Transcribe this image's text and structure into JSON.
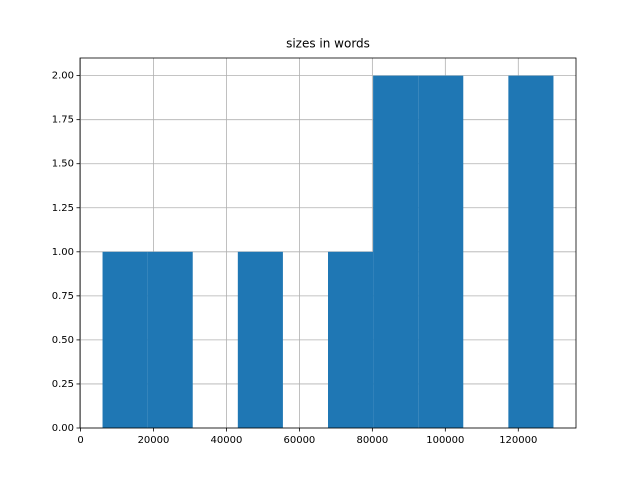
{
  "chart_data": {
    "type": "histogram",
    "title": "sizes in words",
    "bins": [
      6040,
      18400,
      30760,
      43120,
      55480,
      67840,
      80200,
      92560,
      104920,
      117280,
      129640
    ],
    "counts": [
      1,
      1,
      0,
      1,
      0,
      1,
      2,
      2,
      0,
      2
    ],
    "color": "#1f77b4",
    "xlim": [
      -140,
      135820
    ],
    "xticks": [
      0,
      20000,
      40000,
      60000,
      80000,
      100000,
      120000
    ],
    "ylim": [
      0,
      2.1
    ],
    "yticks": [
      {
        "value": 0,
        "label": "0.00"
      },
      {
        "value": 0.25,
        "label": "0.25"
      },
      {
        "value": 0.5,
        "label": "0.50"
      },
      {
        "value": 0.75,
        "label": "0.75"
      },
      {
        "value": 1,
        "label": "1.00"
      },
      {
        "value": 1.25,
        "label": "1.25"
      },
      {
        "value": 1.5,
        "label": "1.50"
      },
      {
        "value": 1.75,
        "label": "1.75"
      },
      {
        "value": 2,
        "label": "2.00"
      }
    ],
    "grid": true
  }
}
